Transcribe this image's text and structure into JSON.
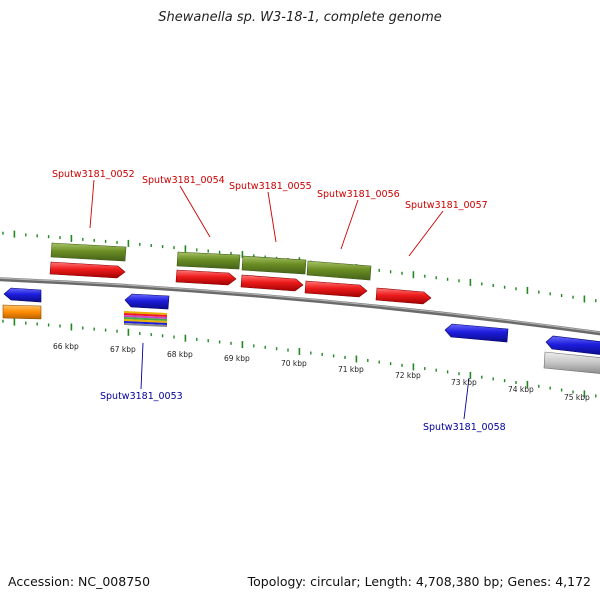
{
  "title": "Shewanella sp. W3-18-1, complete genome",
  "footer": {
    "accession": "Accession: NC_008750",
    "summary": "Topology: circular; Length: 4,708,380 bp; Genes: 4,172"
  },
  "colors": {
    "upper_label": "#cc0000",
    "lower_label": "#000099",
    "tick": "#228822",
    "backbone": "#808080",
    "cds_red": "#ee1c1c",
    "gene_olive": "#6b8e23",
    "cds_blue": "#1d1ddd",
    "orange": "#ff8c00",
    "gray": "#c0c0c0"
  },
  "scale_labels": [
    "66 kbp",
    "67 kbp",
    "68 kbp",
    "69 kbp",
    "70 kbp",
    "71 kbp",
    "72 kbp",
    "73 kbp",
    "74 kbp",
    "75 kbp"
  ],
  "gene_labels_upper": [
    "Sputw3181_0052",
    "Sputw3181_0054",
    "Sputw3181_0055",
    "Sputw3181_0056",
    "Sputw3181_0057"
  ],
  "gene_labels_lower": [
    "Sputw3181_0053",
    "Sputw3181_0058"
  ]
}
